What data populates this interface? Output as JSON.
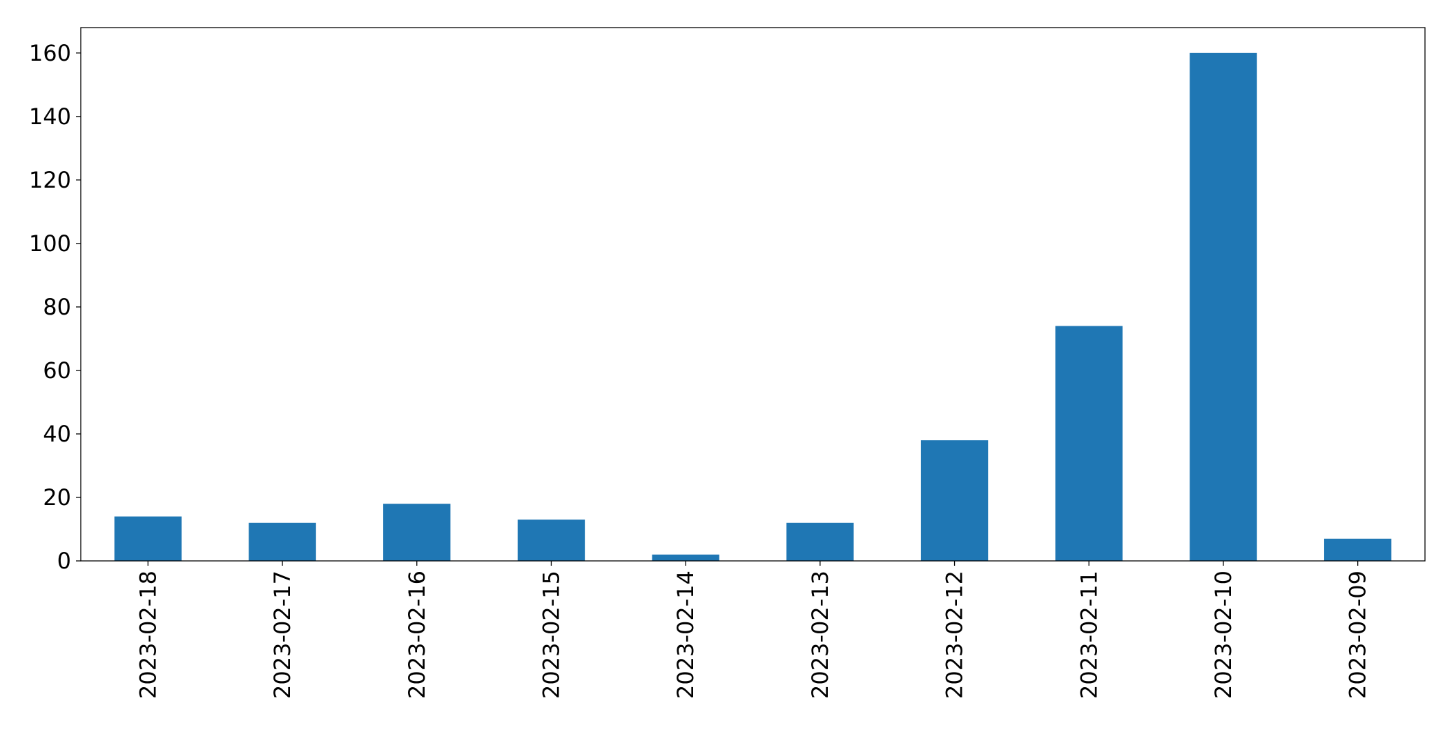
{
  "chart_data": {
    "type": "bar",
    "categories": [
      "2023-02-18",
      "2023-02-17",
      "2023-02-16",
      "2023-02-15",
      "2023-02-14",
      "2023-02-13",
      "2023-02-12",
      "2023-02-11",
      "2023-02-10",
      "2023-02-09"
    ],
    "values": [
      14,
      12,
      18,
      13,
      2,
      12,
      38,
      74,
      160,
      7
    ],
    "color": "#1f77b4",
    "ylim": [
      0,
      168
    ],
    "yticks": [
      0,
      20,
      40,
      60,
      80,
      100,
      120,
      140,
      160
    ],
    "grid": false
  }
}
